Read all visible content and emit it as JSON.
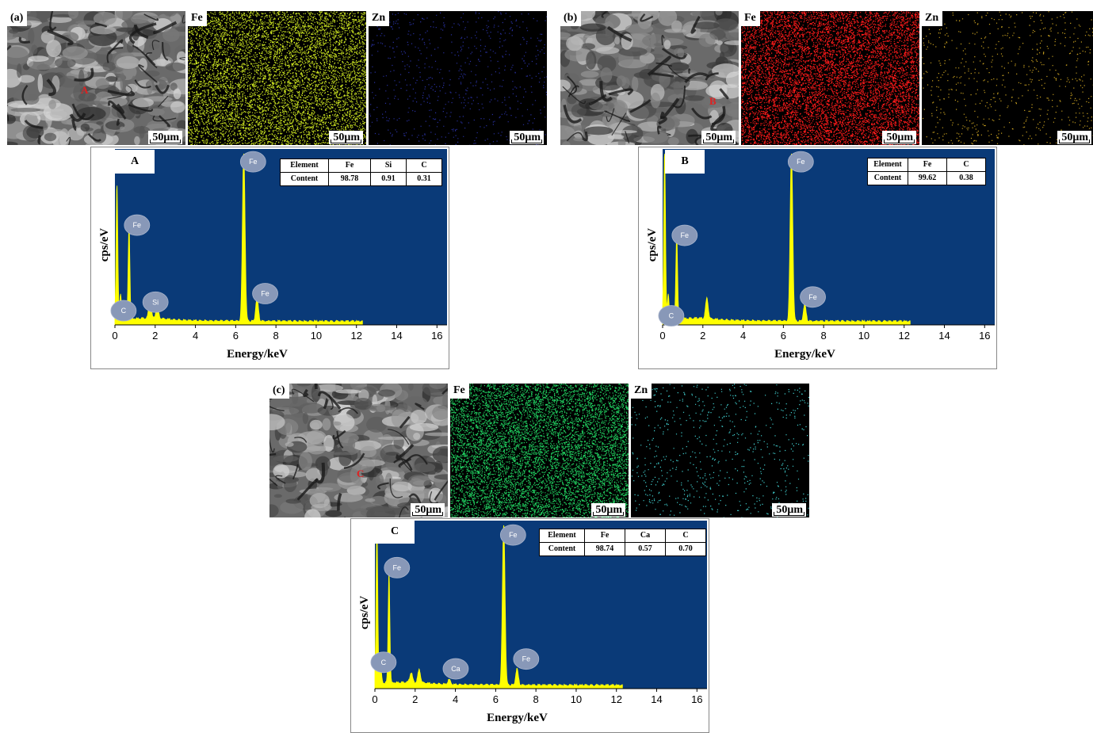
{
  "panels": {
    "a": {
      "label": "(a)",
      "map_labels": [
        "Fe",
        "Zn"
      ],
      "scale": "50μm",
      "spot": "A",
      "spot_marker": "A",
      "table": {
        "header": [
          "Element",
          "Fe",
          "Si",
          "C"
        ],
        "row": [
          "Content",
          "98.78",
          "0.91",
          "0.31"
        ]
      },
      "colors": {
        "fe": "#c8e020",
        "zn": "#2830a0"
      }
    },
    "b": {
      "label": "(b)",
      "map_labels": [
        "Fe",
        "Zn"
      ],
      "scale": "50μm",
      "spot": "B",
      "spot_marker": "B",
      "table": {
        "header": [
          "Element",
          "Fe",
          "C"
        ],
        "row": [
          "Content",
          "99.62",
          "0.38"
        ]
      },
      "colors": {
        "fe": "#ff1a1a",
        "zn": "#c8a020"
      }
    },
    "c": {
      "label": "(c)",
      "map_labels": [
        "Fe",
        "Zn"
      ],
      "scale": "50μm",
      "spot": "C",
      "spot_marker": "C",
      "table": {
        "header": [
          "Element",
          "Fe",
          "Ca",
          "C"
        ],
        "row": [
          "Content",
          "98.74",
          "0.57",
          "0.70"
        ]
      },
      "colors": {
        "fe": "#20d060",
        "zn": "#40d0d0"
      }
    }
  },
  "chart_data": [
    {
      "type": "line",
      "spot": "A",
      "xlabel": "Energy/keV",
      "ylabel": "cps/eV",
      "xlim": [
        0,
        16.5
      ],
      "xticks": [
        0,
        2,
        4,
        6,
        8,
        10,
        12,
        14,
        16
      ],
      "background": "#0a3a78",
      "series_color": "#ffff00",
      "peaks": [
        {
          "element": "C",
          "energy": 0.28,
          "height": 0.14
        },
        {
          "element": "",
          "energy": 0.1,
          "height": 0.78
        },
        {
          "element": "Fe",
          "energy": 0.7,
          "height": 0.55
        },
        {
          "element": "Si",
          "energy": 1.74,
          "height": 0.1
        },
        {
          "element": "",
          "energy": 2.1,
          "height": 0.08
        },
        {
          "element": "Fe",
          "energy": 6.4,
          "height": 1.0
        },
        {
          "element": "Fe",
          "energy": 7.06,
          "height": 0.14
        }
      ],
      "labels": [
        {
          "text": "C",
          "energy": 0.35,
          "level": 0.12
        },
        {
          "text": "Fe",
          "energy": 0.78,
          "level": 0.62
        },
        {
          "text": "Si",
          "energy": 1.7,
          "level": 0.17
        },
        {
          "text": "Fe",
          "energy": 6.55,
          "level": 0.99
        },
        {
          "text": "Fe",
          "energy": 7.15,
          "level": 0.22
        }
      ]
    },
    {
      "type": "line",
      "spot": "B",
      "xlabel": "Energy/keV",
      "ylabel": "cps/eV",
      "xlim": [
        0,
        16.5
      ],
      "xticks": [
        0,
        2,
        4,
        6,
        8,
        10,
        12,
        14,
        16
      ],
      "background": "#0a3a78",
      "series_color": "#ffff00",
      "peaks": [
        {
          "element": "C",
          "energy": 0.28,
          "height": 0.14
        },
        {
          "element": "",
          "energy": 0.1,
          "height": 0.98
        },
        {
          "element": "Fe",
          "energy": 0.7,
          "height": 0.5
        },
        {
          "element": "",
          "energy": 2.2,
          "height": 0.12
        },
        {
          "element": "Fe",
          "energy": 6.4,
          "height": 1.0
        },
        {
          "element": "Fe",
          "energy": 7.06,
          "height": 0.1
        }
      ],
      "labels": [
        {
          "text": "C",
          "energy": 0.35,
          "level": 0.09
        },
        {
          "text": "Fe",
          "energy": 0.78,
          "level": 0.56
        },
        {
          "text": "Fe",
          "energy": 6.55,
          "level": 0.99
        },
        {
          "text": "Fe",
          "energy": 7.15,
          "level": 0.2
        }
      ]
    },
    {
      "type": "line",
      "spot": "C",
      "xlabel": "Energy/keV",
      "ylabel": "cps/eV",
      "xlim": [
        0,
        16.5
      ],
      "xticks": [
        0,
        2,
        4,
        6,
        8,
        10,
        12,
        14,
        16
      ],
      "background": "#0a3a78",
      "series_color": "#ffff00",
      "peaks": [
        {
          "element": "C",
          "energy": 0.28,
          "height": 0.12
        },
        {
          "element": "",
          "energy": 0.1,
          "height": 0.95
        },
        {
          "element": "Fe",
          "energy": 0.7,
          "height": 0.68
        },
        {
          "element": "",
          "energy": 1.8,
          "height": 0.06
        },
        {
          "element": "",
          "energy": 2.2,
          "height": 0.08
        },
        {
          "element": "Ca",
          "energy": 3.69,
          "height": 0.03
        },
        {
          "element": "Fe",
          "energy": 6.4,
          "height": 1.0
        },
        {
          "element": "Fe",
          "energy": 7.06,
          "height": 0.1
        }
      ],
      "labels": [
        {
          "text": "C",
          "energy": 0.35,
          "level": 0.2
        },
        {
          "text": "Fe",
          "energy": 0.78,
          "level": 0.78
        },
        {
          "text": "Ca",
          "energy": 3.7,
          "level": 0.16
        },
        {
          "text": "Fe",
          "energy": 6.55,
          "level": 0.98
        },
        {
          "text": "Fe",
          "energy": 7.2,
          "level": 0.22
        }
      ]
    }
  ]
}
